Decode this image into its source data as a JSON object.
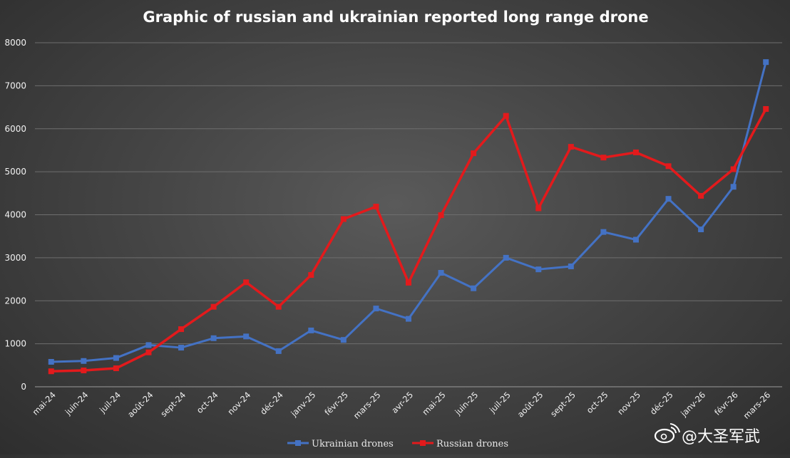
{
  "chart_data": {
    "type": "line",
    "title": "Graphic of russian and ukrainian reported long range drone",
    "xlabel": "",
    "ylabel": "",
    "categories": [
      "mai-24",
      "juin-24",
      "juil-24",
      "août-24",
      "sept-24",
      "oct-24",
      "nov-24",
      "déc-24",
      "janv-25",
      "févr-25",
      "mars-25",
      "avr-25",
      "mai-25",
      "juin-25",
      "juil-25",
      "août-25",
      "sept-25",
      "oct-25",
      "nov-25",
      "déc-25",
      "janv-26",
      "févr-26",
      "mars-26"
    ],
    "ylim": [
      0,
      8000
    ],
    "yticks": [
      "0",
      "1000",
      "2000",
      "3000",
      "4000",
      "5000",
      "6000",
      "7000",
      "8000"
    ],
    "grid": true,
    "legend_position": "bottom",
    "series": [
      {
        "name": "Ukrainian drones",
        "color": "#4472c4",
        "values": [
          580,
          600,
          670,
          970,
          910,
          1130,
          1170,
          830,
          1310,
          1090,
          1820,
          1580,
          2650,
          2290,
          3000,
          2730,
          2800,
          3600,
          3420,
          4370,
          3660,
          4650,
          7550
        ]
      },
      {
        "name": "Russian drones",
        "color": "#e31a1c",
        "values": [
          360,
          380,
          430,
          800,
          1340,
          1860,
          2430,
          1860,
          2600,
          3900,
          4190,
          2420,
          3990,
          5430,
          6300,
          4150,
          5580,
          5330,
          5450,
          5130,
          4440,
          5060,
          6460
        ]
      }
    ]
  },
  "watermark": {
    "icon": "weibo-logo-icon",
    "text": "@大圣军武"
  }
}
